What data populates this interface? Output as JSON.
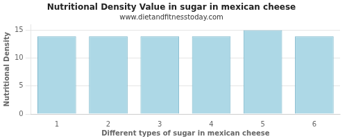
{
  "chart_data": {
    "type": "bar",
    "title": "Nutritional Density Value in sugar in mexican cheese",
    "subtitle": "www.dietandfitnesstoday.com",
    "xlabel": "Different types of sugar in mexican cheese",
    "ylabel": "Nutritional Density",
    "categories": [
      1,
      2,
      3,
      4,
      5,
      6
    ],
    "values": [
      13.9,
      13.9,
      13.9,
      13.9,
      15.0,
      13.9
    ],
    "color": "#add8e6",
    "ylim": [
      0,
      16
    ],
    "yticks": [
      0,
      5,
      10,
      15
    ],
    "grid": true
  }
}
